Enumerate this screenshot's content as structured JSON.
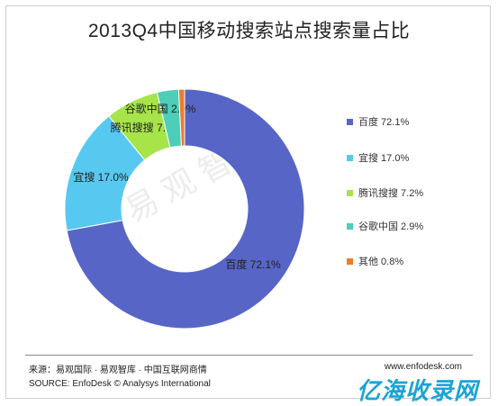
{
  "chart_data": {
    "type": "pie",
    "title": "2013Q4中国移动搜索站点搜索量占比",
    "slices": [
      {
        "label": "百度",
        "value": 72.1,
        "pct_label": "72.1%",
        "color": "#5765c6"
      },
      {
        "label": "宜搜",
        "value": 17.0,
        "pct_label": "17.0%",
        "color": "#57c9f0"
      },
      {
        "label": "腾讯搜搜",
        "value": 7.2,
        "pct_label": "7.2%",
        "color": "#a6e44a"
      },
      {
        "label": "谷歌中国",
        "value": 2.9,
        "pct_label": "2.9%",
        "color": "#4ecdb8"
      },
      {
        "label": "其他",
        "value": 0.8,
        "pct_label": "0.8%",
        "color": "#f07a2a"
      }
    ],
    "legend_position": "right",
    "donut": true
  },
  "watermark": "易观智库",
  "source_cn": "来源：易观国际 · 易观智库 · 中国互联网商情",
  "source_en": "SOURCE: EnfoDesk © Analysys International",
  "url": "www.enfodesk.com",
  "brand": "亿海收录网"
}
